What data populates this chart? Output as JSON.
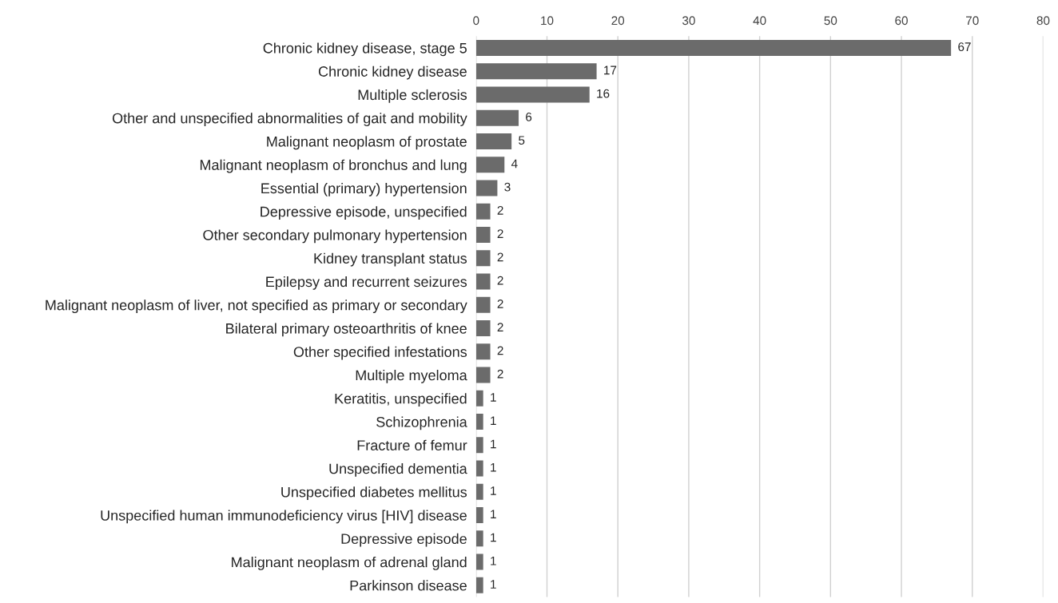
{
  "chart_data": {
    "type": "bar",
    "orientation": "horizontal",
    "categories": [
      "Chronic kidney disease, stage 5",
      "Chronic kidney disease",
      "Multiple sclerosis",
      "Other and unspecified abnormalities of gait and mobility",
      "Malignant neoplasm of prostate",
      "Malignant neoplasm of bronchus and lung",
      "Essential (primary) hypertension",
      "Depressive episode, unspecified",
      "Other secondary pulmonary hypertension",
      "Kidney transplant status",
      "Epilepsy and recurrent seizures",
      "Malignant neoplasm of liver, not specified as primary or secondary",
      "Bilateral primary osteoarthritis of knee",
      "Other specified infestations",
      "Multiple myeloma",
      "Keratitis, unspecified",
      "Schizophrenia",
      "Fracture of femur",
      "Unspecified dementia",
      "Unspecified diabetes mellitus",
      "Unspecified human immunodeficiency virus [HIV] disease",
      "Depressive episode",
      "Malignant neoplasm of adrenal gland",
      "Parkinson disease"
    ],
    "values": [
      67,
      17,
      16,
      6,
      5,
      4,
      3,
      2,
      2,
      2,
      2,
      2,
      2,
      2,
      2,
      1,
      1,
      1,
      1,
      1,
      1,
      1,
      1,
      1
    ],
    "color": "#6b6b6b",
    "xlim": [
      0,
      80
    ],
    "xticks": [
      0,
      10,
      20,
      30,
      40,
      50,
      60,
      70,
      80
    ],
    "grid": "x",
    "data_labels": true
  }
}
